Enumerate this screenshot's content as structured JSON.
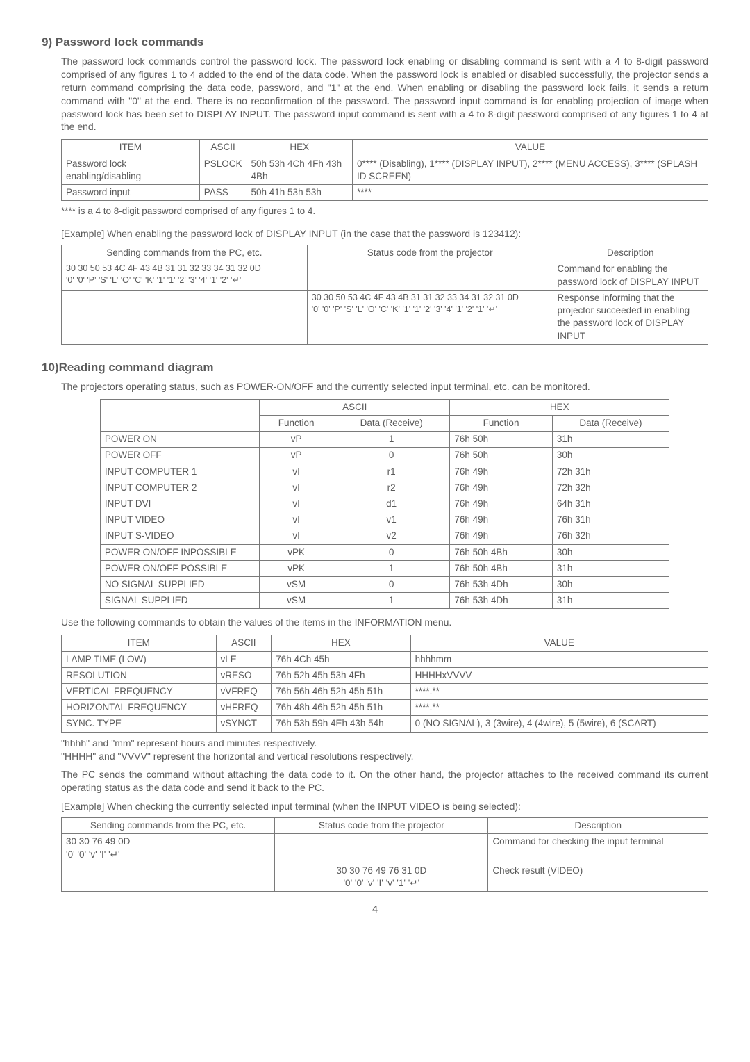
{
  "section9": {
    "heading": "9) Password lock commands",
    "para": "The password lock commands control the password lock. The password lock enabling or disabling command is sent with a 4 to 8-digit password comprised of any figures 1 to 4 added to the end of the data code. When the password lock is enabled or disabled successfully, the projector sends a return command comprising the data code, password, and \"1\" at the end. When enabling or disabling the password lock fails, it sends a return command with \"0\" at the end. There is no reconfirmation of the password. The password input command is for enabling projection of image when password lock has been set to DISPLAY INPUT. The password input command is sent with a 4 to 8-digit password comprised of any figures 1 to 4 at the end.",
    "table1": {
      "headers": [
        "ITEM",
        "ASCII",
        "HEX",
        "VALUE"
      ],
      "rows": [
        [
          "Password lock enabling/disabling",
          "PSLOCK",
          "50h  53h  4Ch  4Fh  43h  4Bh",
          "0**** (Disabling), 1**** (DISPLAY INPUT), 2**** (MENU ACCESS), 3**** (SPLASH ID SCREEN)"
        ],
        [
          "Password input",
          "PASS",
          "50h  41h  53h  53h",
          "****"
        ]
      ]
    },
    "footnote": "**** is a 4 to 8-digit password comprised of any figures 1 to 4.",
    "example_label": "[Example]    When enabling the password lock of DISPLAY INPUT (in the case that the password is 123412):",
    "table2": {
      "headers": [
        "Sending commands from the PC, etc.",
        "Status code from the projector",
        "Description"
      ],
      "rows": [
        {
          "c1a": "30 30 50 53 4C 4F 43 4B 31 31 32 33 34 31 32 0D",
          "c1b": "'0' '0' 'P' 'S' 'L' 'O' 'C' 'K' '1' '1' '2' '3' '4' '1' '2' '↵'",
          "c2a": "",
          "c2b": "",
          "c3": "Command for enabling the password lock of DISPLAY INPUT"
        },
        {
          "c1a": "",
          "c1b": "",
          "c2a": "30 30 50 53 4C 4F 43 4B 31 31 32 33 34 31 32 31 0D",
          "c2b": "'0' '0' 'P' 'S' 'L' 'O' 'C' 'K' '1' '1' '2' '3' '4' '1' '2' '1' '↵'",
          "c3": "Response informing that the projector succeeded in enabling the password lock of DISPLAY INPUT"
        }
      ]
    }
  },
  "section10": {
    "heading": "10)Reading command diagram",
    "para": "The projectors operating status, such as POWER-ON/OFF and the currently selected input terminal, etc. can be monitored.",
    "table3": {
      "top_headers": [
        "",
        "ASCII",
        "HEX"
      ],
      "sub_headers": [
        "",
        "Function",
        "Data (Receive)",
        "Function",
        "Data (Receive)"
      ],
      "rows": [
        [
          "POWER ON",
          "vP",
          "1",
          "76h  50h",
          "31h"
        ],
        [
          "POWER OFF",
          "vP",
          "0",
          "76h  50h",
          "30h"
        ],
        [
          "INPUT COMPUTER 1",
          "vI",
          "r1",
          "76h  49h",
          "72h  31h"
        ],
        [
          "INPUT COMPUTER 2",
          "vI",
          "r2",
          "76h  49h",
          "72h  32h"
        ],
        [
          "INPUT DVI",
          "vI",
          "d1",
          "76h  49h",
          "64h  31h"
        ],
        [
          "INPUT VIDEO",
          "vI",
          "v1",
          "76h  49h",
          "76h  31h"
        ],
        [
          "INPUT S-VIDEO",
          "vI",
          "v2",
          "76h  49h",
          "76h  32h"
        ],
        [
          "POWER ON/OFF INPOSSIBLE",
          "vPK",
          "0",
          "76h  50h  4Bh",
          "30h"
        ],
        [
          "POWER ON/OFF POSSIBLE",
          "vPK",
          "1",
          "76h  50h  4Bh",
          "31h"
        ],
        [
          "NO SIGNAL SUPPLIED",
          "vSM",
          "0",
          "76h  53h  4Dh",
          "30h"
        ],
        [
          "SIGNAL SUPPLIED",
          "vSM",
          "1",
          "76h  53h  4Dh",
          "31h"
        ]
      ]
    },
    "para2": "Use the following commands to obtain the values of the items in the INFORMATION menu.",
    "table4": {
      "headers": [
        "ITEM",
        "ASCII",
        "HEX",
        "VALUE"
      ],
      "rows": [
        [
          "LAMP TIME (LOW)",
          "vLE",
          "76h  4Ch  45h",
          "hhhhmm"
        ],
        [
          "RESOLUTION",
          "vRESO",
          "76h  52h  45h  53h  4Fh",
          "HHHHxVVVV"
        ],
        [
          "VERTICAL FREQUENCY",
          "vVFREQ",
          "76h  56h  46h  52h  45h  51h",
          "****.**"
        ],
        [
          "HORIZONTAL FREQUENCY",
          "vHFREQ",
          "76h  48h  46h  52h  45h  51h",
          "****.**"
        ],
        [
          "SYNC. TYPE",
          "vSYNCT",
          "76h  53h  59h  4Eh  43h  54h",
          "0 (NO SIGNAL), 3 (3wire),  4 (4wire), 5 (5wire), 6 (SCART)"
        ]
      ]
    },
    "para3a": "\"hhhh\" and \"mm\" represent hours and minutes respectively.",
    "para3b": "\"HHHH\" and \"VVVV\" represent the horizontal and vertical resolutions respectively.",
    "para4": "The PC sends the command without attaching the data code to it. On the other hand, the projector attaches to the received command its current operating status as the data code and send it back to the PC.",
    "example_label2": "[Example]    When checking the currently selected input terminal (when the INPUT VIDEO is being selected):",
    "table5": {
      "headers": [
        "Sending commands from the PC, etc.",
        "Status code from the projector",
        "Description"
      ],
      "rows": [
        {
          "c1a": "30 30 76 49 0D",
          "c1b": "'0' '0' 'v' 'I' '↵'",
          "c2a": "",
          "c2b": "",
          "c3": "Command for checking the input terminal"
        },
        {
          "c1a": "",
          "c1b": "",
          "c2a": "30 30 76 49 76 31 0D",
          "c2b": "'0' '0' 'v' 'I' 'v' '1' '↵'",
          "c3": "Check result (VIDEO)"
        }
      ]
    }
  },
  "page_num": "4"
}
